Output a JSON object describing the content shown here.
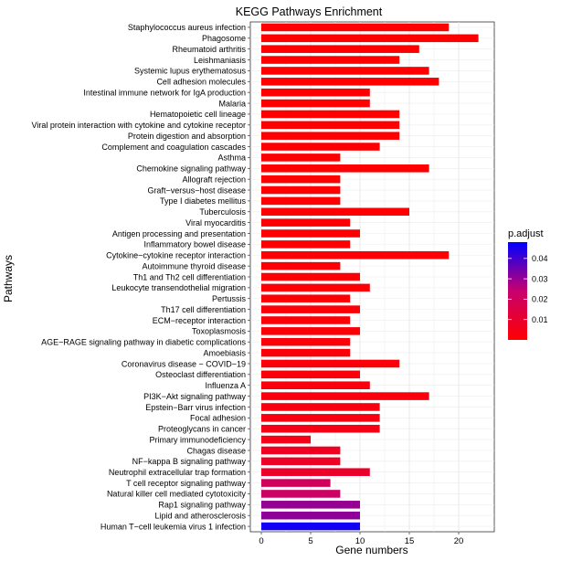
{
  "chart_data": {
    "type": "bar",
    "orientation": "horizontal",
    "title": "KEGG Pathways Enrichment",
    "xlabel": "Gene numbers",
    "ylabel": "Pathways",
    "xlim": [
      0,
      22.5
    ],
    "xticks": [
      0,
      5,
      10,
      15,
      20
    ],
    "categories": [
      "Staphylococcus aureus infection",
      "Phagosome",
      "Rheumatoid arthritis",
      "Leishmaniasis",
      "Systemic lupus erythematosus",
      "Cell adhesion molecules",
      "Intestinal immune network for IgA production",
      "Malaria",
      "Hematopoietic cell lineage",
      "Viral protein interaction with cytokine and cytokine receptor",
      "Protein digestion and absorption",
      "Complement and coagulation cascades",
      "Asthma",
      "Chemokine signaling pathway",
      "Allograft rejection",
      "Graft−versus−host disease",
      "Type I diabetes mellitus",
      "Tuberculosis",
      "Viral myocarditis",
      "Antigen processing and presentation",
      "Inflammatory bowel disease",
      "Cytokine−cytokine receptor interaction",
      "Autoimmune thyroid disease",
      "Th1 and Th2 cell differentiation",
      "Leukocyte transendothelial migration",
      "Pertussis",
      "Th17 cell differentiation",
      "ECM−receptor interaction",
      "Toxoplasmosis",
      "AGE−RAGE signaling pathway in diabetic complications",
      "Amoebiasis",
      "Coronavirus disease − COVID−19",
      "Osteoclast differentiation",
      "Influenza A",
      "PI3K−Akt signaling pathway",
      "Epstein−Barr virus infection",
      "Focal adhesion",
      "Proteoglycans in cancer",
      "Primary immunodeficiency",
      "Chagas disease",
      "NF−kappa B signaling pathway",
      "Neutrophil extracellular trap formation",
      "T cell receptor signaling pathway",
      "Natural killer cell mediated cytotoxicity",
      "Rap1 signaling pathway",
      "Lipid and atherosclerosis",
      "Human T−cell leukemia virus 1 infection"
    ],
    "values": [
      19,
      22,
      16,
      14,
      17,
      18,
      11,
      11,
      14,
      14,
      14,
      12,
      8,
      17,
      8,
      8,
      8,
      15,
      9,
      10,
      9,
      19,
      8,
      10,
      11,
      9,
      10,
      9,
      10,
      9,
      9,
      14,
      10,
      11,
      17,
      12,
      12,
      12,
      5,
      8,
      8,
      11,
      7,
      8,
      10,
      10,
      10
    ],
    "p_adjust": [
      0.0001,
      0.0001,
      0.0002,
      0.0002,
      0.0002,
      0.0002,
      0.0003,
      0.0003,
      0.0003,
      0.0003,
      0.0004,
      0.0005,
      0.0005,
      0.0005,
      0.0005,
      0.0005,
      0.0005,
      0.0006,
      0.0007,
      0.0008,
      0.0009,
      0.001,
      0.001,
      0.0012,
      0.0012,
      0.0013,
      0.0014,
      0.0015,
      0.0016,
      0.002,
      0.002,
      0.0022,
      0.0025,
      0.0028,
      0.003,
      0.0035,
      0.004,
      0.0045,
      0.005,
      0.007,
      0.008,
      0.009,
      0.02,
      0.022,
      0.03,
      0.031,
      0.046
    ],
    "legend": {
      "title": "p.adjust",
      "ticks": [
        0.01,
        0.02,
        0.03,
        0.04
      ],
      "range": [
        0,
        0.048
      ],
      "color_low": "#FF0000",
      "color_high": "#0000FF",
      "placement": "right"
    },
    "grid": true
  }
}
